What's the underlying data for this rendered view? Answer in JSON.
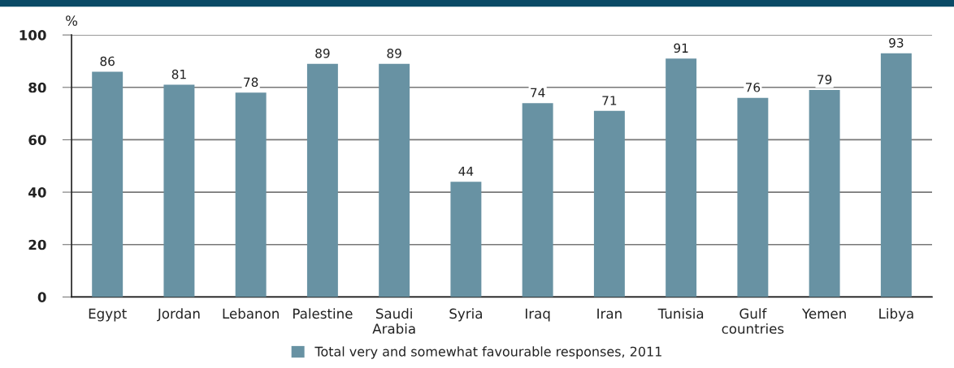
{
  "chart_data": {
    "type": "bar",
    "categories": [
      "Egypt",
      "Jordan",
      "Lebanon",
      "Palestine",
      "Saudi\nArabia",
      "Syria",
      "Iraq",
      "Iran",
      "Tunisia",
      "Gulf\ncountries",
      "Yemen",
      "Libya"
    ],
    "series": [
      {
        "name": "Total very and somewhat favourable responses, 2011",
        "color": "#6892a3",
        "values": [
          86,
          81,
          78,
          89,
          89,
          44,
          74,
          71,
          91,
          76,
          79,
          93
        ]
      }
    ],
    "ylabel": "%",
    "ylim": [
      0,
      100
    ],
    "yticks": [
      0,
      20,
      40,
      60,
      80,
      100
    ],
    "grid": "y",
    "legend": "bottom",
    "data_labels": true
  }
}
